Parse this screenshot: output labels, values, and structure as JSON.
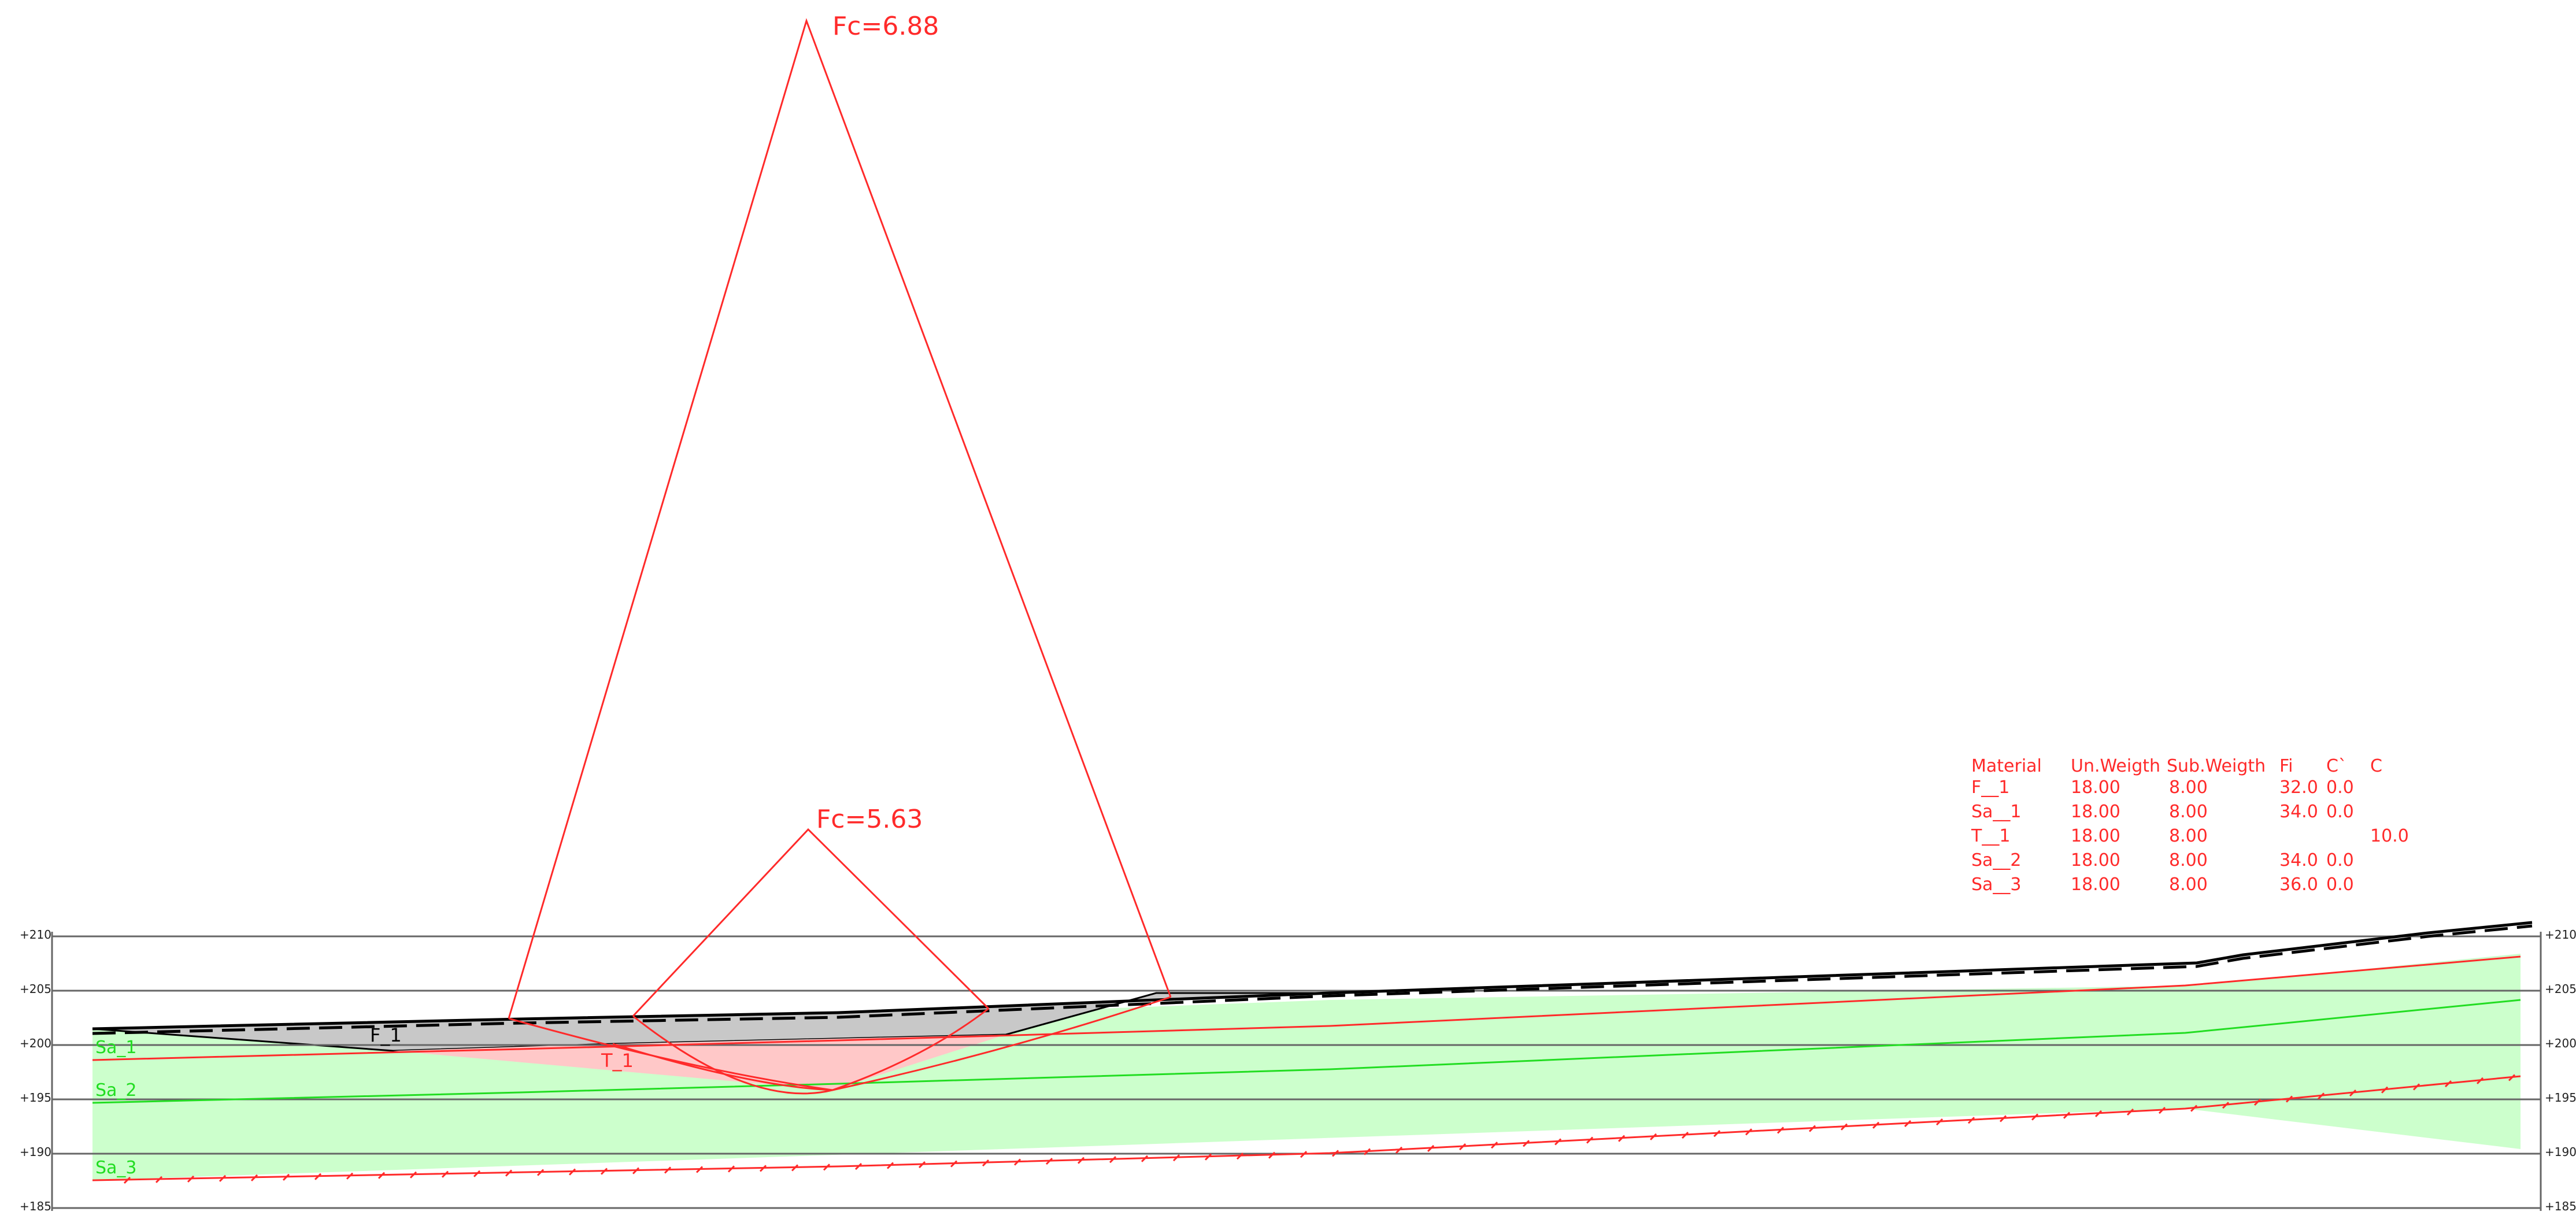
{
  "elevation_labels": [
    "+210",
    "+205",
    "+200",
    "+195",
    "+190",
    "+185"
  ],
  "elevation_values": [
    210,
    205,
    200,
    195,
    190,
    185
  ],
  "factor_of_safety": {
    "upper": "Fc=6.88",
    "lower": "Fc=5.63"
  },
  "layer_labels": {
    "f1": "F_1",
    "t1": "T_1",
    "sa1": "Sa_1",
    "sa2": "Sa_2",
    "sa3": "Sa_3"
  },
  "material_table": {
    "headers": [
      "Material",
      "Un.Weigth",
      "Sub.Weigth",
      "Fi",
      "C`",
      "C"
    ],
    "rows": [
      [
        "F__1",
        "18.00",
        "8.00",
        "32.0",
        "0.0",
        ""
      ],
      [
        "Sa__1",
        "18.00",
        "8.00",
        "34.0",
        "0.0",
        ""
      ],
      [
        "T__1",
        "18.00",
        "8.00",
        "",
        "",
        "10.0"
      ],
      [
        "Sa__2",
        "18.00",
        "8.00",
        "34.0",
        "0.0",
        ""
      ],
      [
        "Sa__3",
        "18.00",
        "8.00",
        "36.0",
        "0.0",
        ""
      ]
    ]
  },
  "colors": {
    "sand_fill": "#ccffcc",
    "fill_layer": "#c8c8c8",
    "slip_mass": "#ffc8c8",
    "red": "#ff2a2a",
    "green": "#22dd22",
    "grid": "#666666",
    "ground": "#000000"
  }
}
